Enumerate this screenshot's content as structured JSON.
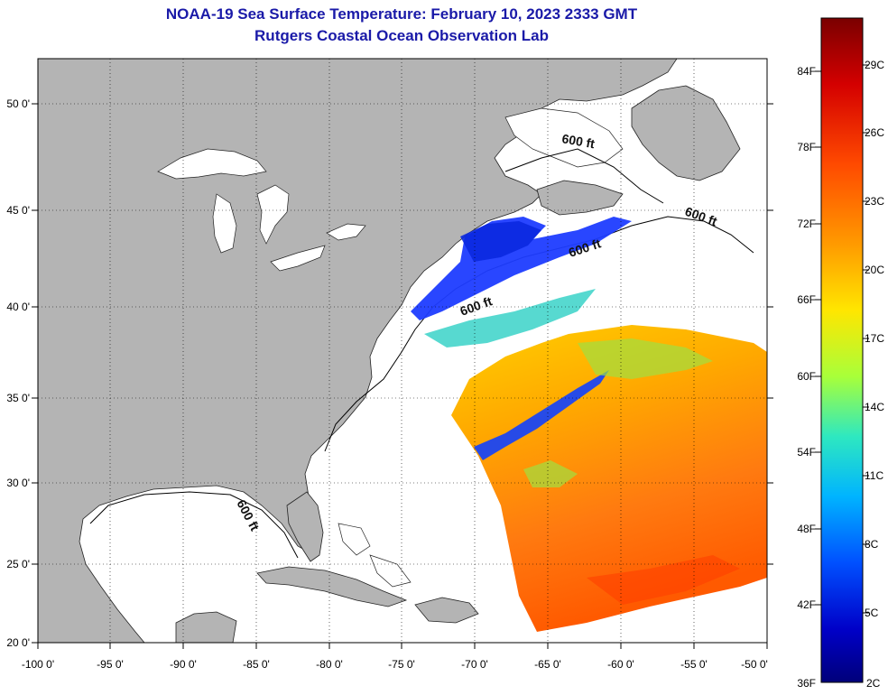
{
  "title": {
    "line1": "NOAA-19 Sea Surface Temperature:  February 10, 2023 2333 GMT",
    "line2": "Rutgers Coastal Ocean Observation Lab"
  },
  "axes": {
    "x_ticks": [
      "-100 0'",
      "-95 0'",
      "-90 0'",
      "-85 0'",
      "-80 0'",
      "-75 0'",
      "-70 0'",
      "-65 0'",
      "-60 0'",
      "-55 0'",
      "-50 0'"
    ],
    "y_ticks": [
      "50 0'",
      "45 0'",
      "40 0'",
      "35 0'",
      "30 0'",
      "25 0'",
      "20 0'"
    ]
  },
  "contour_labels": [
    "600 ft",
    "600 ft",
    "600 ft",
    "600 ft",
    "600 ft"
  ],
  "colorbar": {
    "fahrenheit": [
      "84F",
      "78F",
      "72F",
      "66F",
      "60F",
      "54F",
      "48F",
      "42F",
      "36F"
    ],
    "celsius": [
      "29C",
      "26C",
      "23C",
      "20C",
      "17C",
      "14C",
      "11C",
      "8C",
      "5C",
      "2C"
    ],
    "colors": [
      "#7a0000",
      "#d40000",
      "#ff4a00",
      "#ff9a00",
      "#ffe600",
      "#a8ff3a",
      "#2ee8c0",
      "#00b4ff",
      "#0050ff",
      "#0000c8",
      "#00007a"
    ]
  },
  "map": {
    "land_color": "#b4b4b4",
    "ocean_color": "#ffffff"
  }
}
